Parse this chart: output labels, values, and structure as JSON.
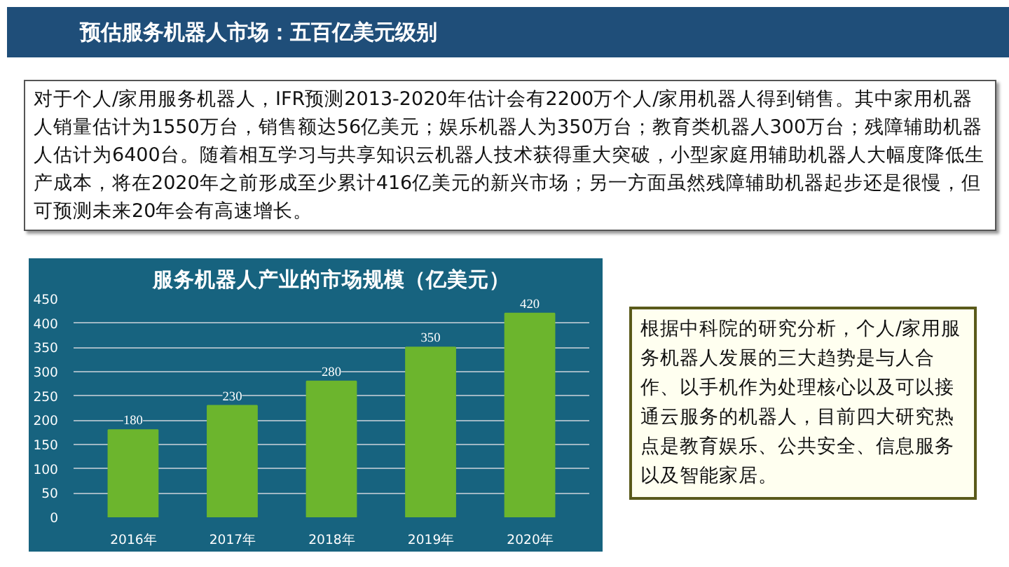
{
  "chart_data": {
    "type": "bar",
    "title": "服务机器人产业的市场规模（亿美元）",
    "categories": [
      "2016年",
      "2017年",
      "2018年",
      "2019年",
      "2020年"
    ],
    "values": [
      180,
      230,
      280,
      350,
      420
    ],
    "color": "#6cb52d",
    "ylim": [
      0,
      450
    ],
    "yticks": [
      0,
      50,
      100,
      150,
      200,
      250,
      300,
      350,
      400,
      450
    ],
    "grid": "y",
    "data_labels": true,
    "annotations": [
      "预估服务机器人市场：五百亿美元级别",
      "对于个人/家用服务机器人，IFR预测2013-2020年估计会有2200万个人/家用机器人得到销售。其中家用机器人销量估计为1550万台，销售额达56亿美元；娱乐机器人为350万台；教育类机器人300万台；残障辅助机器人估计为6400台。随着相互学习与共享知识云机器人技术获得重大突破，小型家庭用辅助机器人大幅度降低生产成本，将在2020年之前形成至少累计416亿美元的新兴市场；另一方面虽然残障辅助机器起步还是很慢，但可预测未来20年会有高速增长。",
      "根据中科院的研究分析，个人/家用服务机器人发展的三大趋势是与人合作、以手机作为处理核心以及可以接通云服务的机器人，目前四大研究热点是教育娱乐、公共安全、信息服务以及智能家居。"
    ]
  }
}
